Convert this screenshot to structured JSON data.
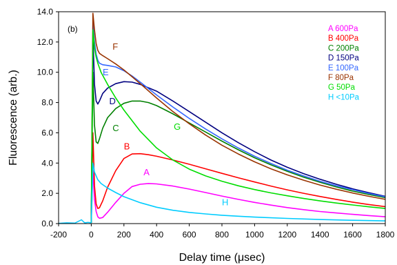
{
  "chart_data": {
    "type": "line",
    "panel_label": "(b)",
    "xlabel": "Delay time (μsec)",
    "ylabel": "Fluorescence (arb.)",
    "xlim": [
      -200,
      1800
    ],
    "ylim": [
      0,
      14
    ],
    "xticks": [
      -200,
      0,
      200,
      400,
      600,
      800,
      1000,
      1200,
      1400,
      1600,
      1800
    ],
    "yticks": [
      "0.0",
      "2.0",
      "4.0",
      "6.0",
      "8.0",
      "10.0",
      "12.0",
      "14.0"
    ],
    "grid": false,
    "legend_position": "top-right",
    "baseline": {
      "color": "#00c8ff",
      "points": [
        [
          -200,
          0.02
        ],
        [
          -150,
          0.05
        ],
        [
          -100,
          0.03
        ],
        [
          -60,
          0.25
        ],
        [
          -40,
          0.05
        ],
        [
          -20,
          0.08
        ],
        [
          0,
          0.05
        ]
      ]
    },
    "series": [
      {
        "name": "A 600Pa",
        "letter": "A",
        "color": "#ff00ff",
        "label_at": [
          320,
          3.2
        ],
        "points": [
          [
            0,
            0.05
          ],
          [
            10,
            3.5
          ],
          [
            20,
            1.6
          ],
          [
            30,
            0.8
          ],
          [
            40,
            0.45
          ],
          [
            50,
            0.35
          ],
          [
            70,
            0.4
          ],
          [
            100,
            0.75
          ],
          [
            150,
            1.4
          ],
          [
            200,
            2.0
          ],
          [
            250,
            2.45
          ],
          [
            300,
            2.6
          ],
          [
            350,
            2.65
          ],
          [
            400,
            2.62
          ],
          [
            500,
            2.48
          ],
          [
            600,
            2.28
          ],
          [
            700,
            2.05
          ],
          [
            800,
            1.82
          ],
          [
            900,
            1.6
          ],
          [
            1000,
            1.4
          ],
          [
            1100,
            1.22
          ],
          [
            1200,
            1.06
          ],
          [
            1300,
            0.92
          ],
          [
            1400,
            0.8
          ],
          [
            1500,
            0.7
          ],
          [
            1600,
            0.61
          ],
          [
            1700,
            0.53
          ],
          [
            1800,
            0.45
          ]
        ]
      },
      {
        "name": "B 400Pa",
        "letter": "B",
        "color": "#ff0000",
        "label_at": [
          200,
          4.9
        ],
        "points": [
          [
            0,
            0.05
          ],
          [
            10,
            6.0
          ],
          [
            20,
            2.5
          ],
          [
            30,
            1.3
          ],
          [
            40,
            1.0
          ],
          [
            50,
            1.05
          ],
          [
            70,
            1.5
          ],
          [
            100,
            2.4
          ],
          [
            150,
            3.5
          ],
          [
            200,
            4.3
          ],
          [
            250,
            4.6
          ],
          [
            300,
            4.62
          ],
          [
            350,
            4.55
          ],
          [
            400,
            4.45
          ],
          [
            500,
            4.2
          ],
          [
            600,
            3.92
          ],
          [
            700,
            3.62
          ],
          [
            800,
            3.32
          ],
          [
            900,
            3.03
          ],
          [
            1000,
            2.75
          ],
          [
            1100,
            2.48
          ],
          [
            1200,
            2.23
          ],
          [
            1300,
            2.0
          ],
          [
            1400,
            1.79
          ],
          [
            1500,
            1.6
          ],
          [
            1600,
            1.42
          ],
          [
            1700,
            1.26
          ],
          [
            1800,
            1.12
          ]
        ]
      },
      {
        "name": "C 200Pa",
        "letter": "C",
        "color": "#008000",
        "label_at": [
          130,
          6.1
        ],
        "points": [
          [
            0,
            0.05
          ],
          [
            10,
            10.0
          ],
          [
            20,
            6.5
          ],
          [
            30,
            5.4
          ],
          [
            40,
            5.3
          ],
          [
            50,
            5.6
          ],
          [
            70,
            6.3
          ],
          [
            100,
            7.0
          ],
          [
            150,
            7.6
          ],
          [
            200,
            7.95
          ],
          [
            250,
            8.1
          ],
          [
            300,
            8.1
          ],
          [
            350,
            8.0
          ],
          [
            400,
            7.8
          ],
          [
            500,
            7.25
          ],
          [
            600,
            6.65
          ],
          [
            700,
            6.05
          ],
          [
            800,
            5.45
          ],
          [
            900,
            4.88
          ],
          [
            1000,
            4.35
          ],
          [
            1100,
            3.88
          ],
          [
            1200,
            3.45
          ],
          [
            1300,
            3.07
          ],
          [
            1400,
            2.73
          ],
          [
            1500,
            2.42
          ],
          [
            1600,
            2.15
          ],
          [
            1700,
            1.92
          ],
          [
            1800,
            1.72
          ]
        ]
      },
      {
        "name": "D 150Pa",
        "letter": "D",
        "color": "#000080",
        "label_at": [
          110,
          7.9
        ],
        "points": [
          [
            0,
            0.05
          ],
          [
            10,
            12.5
          ],
          [
            20,
            9.2
          ],
          [
            30,
            8.1
          ],
          [
            40,
            7.9
          ],
          [
            50,
            8.1
          ],
          [
            70,
            8.6
          ],
          [
            100,
            8.95
          ],
          [
            150,
            9.25
          ],
          [
            200,
            9.38
          ],
          [
            250,
            9.35
          ],
          [
            300,
            9.2
          ],
          [
            400,
            8.75
          ],
          [
            500,
            8.1
          ],
          [
            600,
            7.4
          ],
          [
            700,
            6.7
          ],
          [
            800,
            6.0
          ],
          [
            900,
            5.35
          ],
          [
            1000,
            4.75
          ],
          [
            1100,
            4.2
          ],
          [
            1200,
            3.72
          ],
          [
            1300,
            3.3
          ],
          [
            1400,
            2.93
          ],
          [
            1500,
            2.6
          ],
          [
            1600,
            2.3
          ],
          [
            1700,
            2.04
          ],
          [
            1800,
            1.8
          ]
        ]
      },
      {
        "name": "E 100Pa",
        "letter": "E",
        "color": "#3366ff",
        "label_at": [
          70,
          9.8
        ],
        "points": [
          [
            0,
            0.05
          ],
          [
            10,
            13.3
          ],
          [
            20,
            12.0
          ],
          [
            30,
            11.2
          ],
          [
            40,
            10.8
          ],
          [
            50,
            10.6
          ],
          [
            70,
            10.5
          ],
          [
            100,
            10.45
          ],
          [
            150,
            10.35
          ],
          [
            200,
            10.1
          ],
          [
            250,
            9.75
          ],
          [
            300,
            9.35
          ],
          [
            400,
            8.5
          ],
          [
            500,
            7.7
          ],
          [
            600,
            6.95
          ],
          [
            700,
            6.25
          ],
          [
            800,
            5.6
          ],
          [
            900,
            5.0
          ],
          [
            1000,
            4.45
          ],
          [
            1100,
            3.97
          ],
          [
            1200,
            3.53
          ],
          [
            1300,
            3.15
          ],
          [
            1400,
            2.8
          ],
          [
            1500,
            2.5
          ],
          [
            1600,
            2.24
          ],
          [
            1700,
            1.99
          ],
          [
            1800,
            1.77
          ]
        ]
      },
      {
        "name": "F 80Pa",
        "letter": "F",
        "color": "#993300",
        "label_at": [
          130,
          11.5
        ],
        "points": [
          [
            0,
            0.05
          ],
          [
            10,
            13.9
          ],
          [
            20,
            12.8
          ],
          [
            30,
            11.9
          ],
          [
            40,
            11.45
          ],
          [
            50,
            11.25
          ],
          [
            70,
            11.1
          ],
          [
            100,
            10.9
          ],
          [
            150,
            10.55
          ],
          [
            200,
            10.15
          ],
          [
            250,
            9.7
          ],
          [
            300,
            9.25
          ],
          [
            400,
            8.3
          ],
          [
            500,
            7.4
          ],
          [
            600,
            6.6
          ],
          [
            700,
            5.85
          ],
          [
            800,
            5.18
          ],
          [
            900,
            4.6
          ],
          [
            1000,
            4.08
          ],
          [
            1100,
            3.62
          ],
          [
            1200,
            3.22
          ],
          [
            1300,
            2.87
          ],
          [
            1400,
            2.55
          ],
          [
            1500,
            2.27
          ],
          [
            1600,
            2.02
          ],
          [
            1700,
            1.8
          ],
          [
            1800,
            1.6
          ]
        ]
      },
      {
        "name": "G 50Pa",
        "letter": "G",
        "color": "#00dd00",
        "label_at": [
          505,
          6.2
        ],
        "points": [
          [
            0,
            0.05
          ],
          [
            10,
            12.8
          ],
          [
            20,
            11.6
          ],
          [
            30,
            11.0
          ],
          [
            40,
            10.6
          ],
          [
            60,
            10.0
          ],
          [
            100,
            9.2
          ],
          [
            150,
            8.3
          ],
          [
            200,
            7.5
          ],
          [
            300,
            6.1
          ],
          [
            400,
            5.0
          ],
          [
            500,
            4.2
          ],
          [
            600,
            3.6
          ],
          [
            700,
            3.15
          ],
          [
            800,
            2.8
          ],
          [
            900,
            2.5
          ],
          [
            1000,
            2.25
          ],
          [
            1100,
            2.03
          ],
          [
            1200,
            1.84
          ],
          [
            1300,
            1.66
          ],
          [
            1400,
            1.5
          ],
          [
            1500,
            1.36
          ],
          [
            1600,
            1.23
          ],
          [
            1700,
            1.11
          ],
          [
            1800,
            1.0
          ]
        ]
      },
      {
        "name": "H <10Pa",
        "letter": "H",
        "color": "#00ccff",
        "label_at": [
          800,
          1.2
        ],
        "points": [
          [
            0,
            0.05
          ],
          [
            10,
            4.0
          ],
          [
            20,
            3.4
          ],
          [
            40,
            2.9
          ],
          [
            60,
            2.65
          ],
          [
            100,
            2.35
          ],
          [
            150,
            2.05
          ],
          [
            200,
            1.78
          ],
          [
            300,
            1.38
          ],
          [
            400,
            1.08
          ],
          [
            500,
            0.88
          ],
          [
            600,
            0.74
          ],
          [
            700,
            0.64
          ],
          [
            800,
            0.55
          ],
          [
            900,
            0.49
          ],
          [
            1000,
            0.43
          ],
          [
            1200,
            0.34
          ],
          [
            1400,
            0.27
          ],
          [
            1600,
            0.22
          ],
          [
            1800,
            0.18
          ]
        ]
      }
    ]
  }
}
